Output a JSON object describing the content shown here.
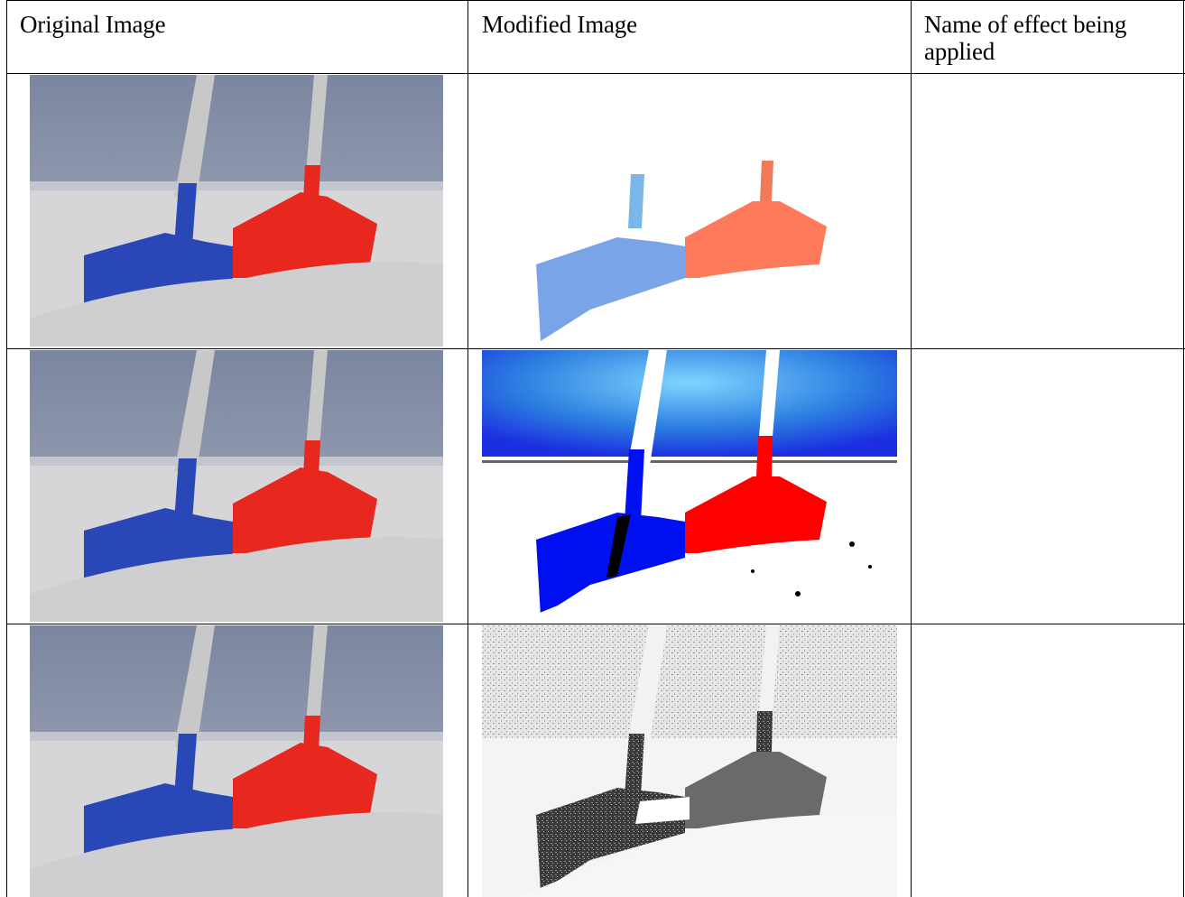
{
  "table": {
    "headers": {
      "original": "Original Image",
      "modified": "Modified Image",
      "effect": "Name of effect being applied"
    },
    "rows": [
      {
        "original_image": "shovels-photo",
        "modified_image": "brightened-washed-out-shovels",
        "effect_name": ""
      },
      {
        "original_image": "shovels-photo",
        "modified_image": "high-contrast-saturated-shovels",
        "effect_name": ""
      },
      {
        "original_image": "shovels-photo",
        "modified_image": "grayscale-sketch-texture-shovels",
        "effect_name": ""
      }
    ]
  },
  "colors": {
    "grid": "#000000",
    "blue_shovel": "#2a47b8",
    "red_shovel": "#e8281f",
    "sky": "#8a96ad",
    "sand": "#d7d7d9"
  }
}
